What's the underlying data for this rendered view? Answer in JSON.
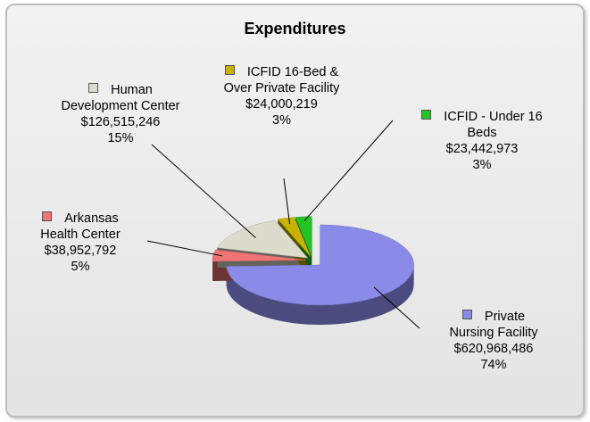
{
  "chart_data": {
    "type": "pie",
    "title": "Expenditures",
    "categories": [
      "Private Nursing Facility",
      "Arkansas Health Center",
      "Human Development Center",
      "ICFID 16-Bed & Over Private Facility",
      "ICFID - Under 16 Beds"
    ],
    "values": [
      620968486,
      38952792,
      126515246,
      24000219,
      23442973
    ],
    "value_labels": [
      "$620,968,486",
      "$38,952,792",
      "$126,515,246",
      "$24,000,219",
      "$23,442,973"
    ],
    "percentages": [
      74,
      5,
      15,
      3,
      3
    ],
    "percentage_labels": [
      "74%",
      "5%",
      "15%",
      "3%",
      "3%"
    ],
    "colors": [
      "#8a8ae8",
      "#f07474",
      "#dcdccc",
      "#c8b400",
      "#22c422"
    ]
  }
}
